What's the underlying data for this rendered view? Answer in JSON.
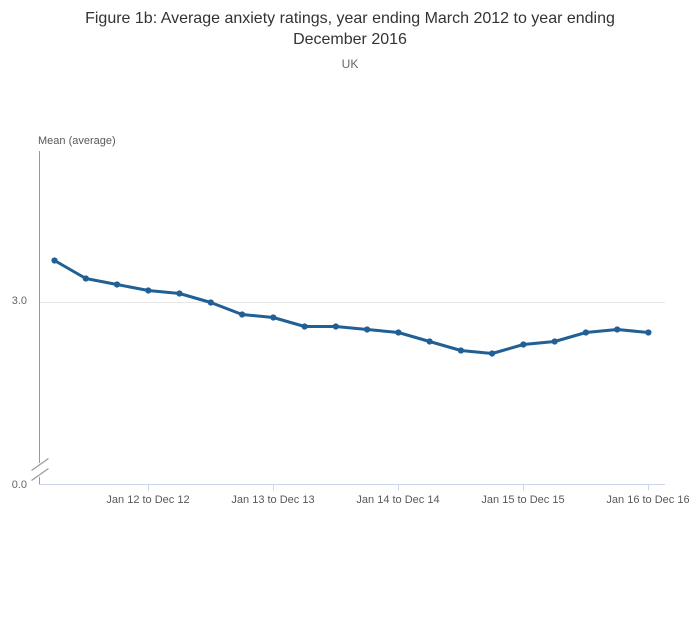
{
  "chart_data": {
    "type": "line",
    "title": "Figure 1b: Average anxiety ratings, year ending March 2012 to year ending December 2016",
    "subtitle": "UK",
    "y_axis_label": "Mean (average)",
    "y_tick_labels": [
      "3.0",
      "0.0"
    ],
    "gridline_values": [
      3.0
    ],
    "ylim": [
      0,
      3.5
    ],
    "axis_break": true,
    "legend": "none",
    "x_tick_labels": [
      "Jan 12 to Dec 12",
      "Jan 13 to Dec 13",
      "Jan 14 to Dec 14",
      "Jan 15 to Dec 15",
      "Jan 16 to Dec 16"
    ],
    "x_tick_point_indices": [
      3,
      7,
      11,
      15,
      19
    ],
    "values": [
      3.14,
      3.08,
      3.06,
      3.04,
      3.03,
      3.0,
      2.96,
      2.95,
      2.92,
      2.92,
      2.91,
      2.9,
      2.87,
      2.84,
      2.83,
      2.86,
      2.87,
      2.9,
      2.91,
      2.9
    ],
    "colors": {
      "line": "#206095",
      "x_axis": "#ccd6eb",
      "y_axis": "#999999",
      "gridline": "#e6e6e6"
    }
  }
}
